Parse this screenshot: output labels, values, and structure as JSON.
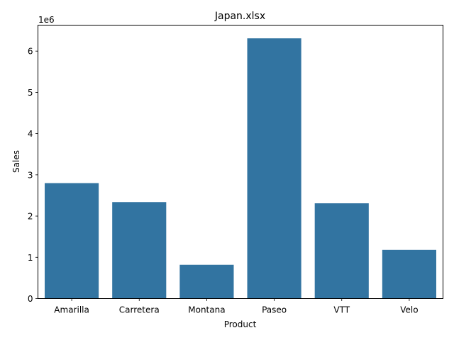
{
  "chart_data": {
    "type": "bar",
    "title": "Japan.xlsx",
    "xlabel": "Product",
    "ylabel": "Sales",
    "offset_label": "1e6",
    "categories": [
      "Amarilla",
      "Carretera",
      "Montana",
      "Paseo",
      "VTT",
      "Velo"
    ],
    "values": [
      2800000,
      2340000,
      820000,
      6310000,
      2310000,
      1180000
    ],
    "ylim": [
      0,
      6630000
    ],
    "yticks": [
      0,
      1000000,
      2000000,
      3000000,
      4000000,
      5000000,
      6000000
    ],
    "ytick_labels": [
      "0",
      "1",
      "2",
      "3",
      "4",
      "5",
      "6"
    ],
    "grid": false,
    "colors": {
      "bar": "#3274a1",
      "axis": "#000000",
      "background": "#ffffff"
    }
  }
}
